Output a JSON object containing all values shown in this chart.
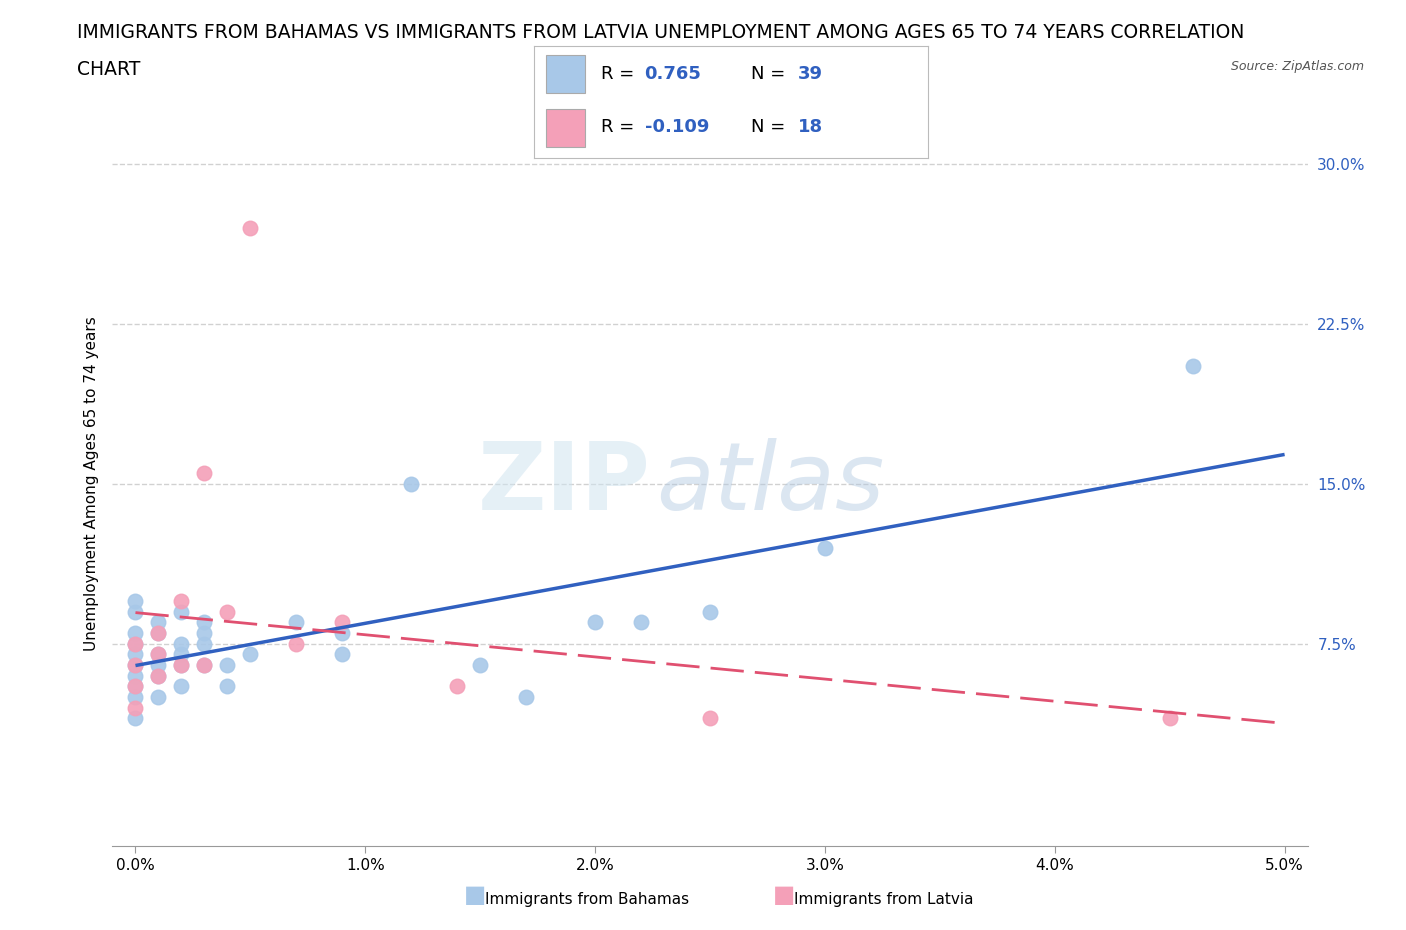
{
  "title_line1": "IMMIGRANTS FROM BAHAMAS VS IMMIGRANTS FROM LATVIA UNEMPLOYMENT AMONG AGES 65 TO 74 YEARS CORRELATION",
  "title_line2": "CHART",
  "source_text": "Source: ZipAtlas.com",
  "ylabel": "Unemployment Among Ages 65 to 74 years",
  "xlim": [
    -0.001,
    0.051
  ],
  "ylim": [
    -0.02,
    0.32
  ],
  "xticks": [
    0.0,
    0.01,
    0.02,
    0.03,
    0.04,
    0.05
  ],
  "xtick_labels": [
    "0.0%",
    "1.0%",
    "2.0%",
    "3.0%",
    "4.0%",
    "5.0%"
  ],
  "yticks": [
    0.075,
    0.15,
    0.225,
    0.3
  ],
  "ytick_labels": [
    "7.5%",
    "15.0%",
    "22.5%",
    "30.0%"
  ],
  "bahamas_color": "#a8c8e8",
  "latvia_color": "#f4a0b8",
  "bahamas_line_color": "#3060c0",
  "latvia_line_color": "#e05070",
  "watermark_zip": "ZIP",
  "watermark_atlas": "atlas",
  "legend_r_bahamas": "0.765",
  "legend_n_bahamas": "39",
  "legend_r_latvia": "-0.109",
  "legend_n_latvia": "18",
  "bahamas_x": [
    0.0,
    0.0,
    0.0,
    0.0,
    0.0,
    0.0,
    0.0,
    0.0,
    0.0,
    0.0,
    0.001,
    0.001,
    0.001,
    0.001,
    0.001,
    0.001,
    0.002,
    0.002,
    0.002,
    0.002,
    0.002,
    0.003,
    0.003,
    0.003,
    0.003,
    0.004,
    0.004,
    0.005,
    0.007,
    0.009,
    0.009,
    0.012,
    0.015,
    0.017,
    0.02,
    0.022,
    0.025,
    0.03,
    0.046
  ],
  "bahamas_y": [
    0.04,
    0.05,
    0.055,
    0.06,
    0.065,
    0.07,
    0.075,
    0.08,
    0.09,
    0.095,
    0.05,
    0.06,
    0.065,
    0.07,
    0.08,
    0.085,
    0.055,
    0.065,
    0.07,
    0.075,
    0.09,
    0.065,
    0.075,
    0.08,
    0.085,
    0.055,
    0.065,
    0.07,
    0.085,
    0.07,
    0.08,
    0.15,
    0.065,
    0.05,
    0.085,
    0.085,
    0.09,
    0.12,
    0.205
  ],
  "latvia_x": [
    0.0,
    0.0,
    0.0,
    0.0,
    0.001,
    0.001,
    0.001,
    0.002,
    0.002,
    0.003,
    0.003,
    0.004,
    0.005,
    0.007,
    0.009,
    0.014,
    0.025,
    0.045
  ],
  "latvia_y": [
    0.045,
    0.055,
    0.065,
    0.075,
    0.06,
    0.07,
    0.08,
    0.065,
    0.095,
    0.065,
    0.155,
    0.09,
    0.27,
    0.075,
    0.085,
    0.055,
    0.04,
    0.04
  ],
  "background_color": "#ffffff",
  "grid_color": "#cccccc",
  "title_fontsize": 13.5,
  "axis_label_fontsize": 11,
  "tick_fontsize": 11,
  "legend_fontsize": 13
}
